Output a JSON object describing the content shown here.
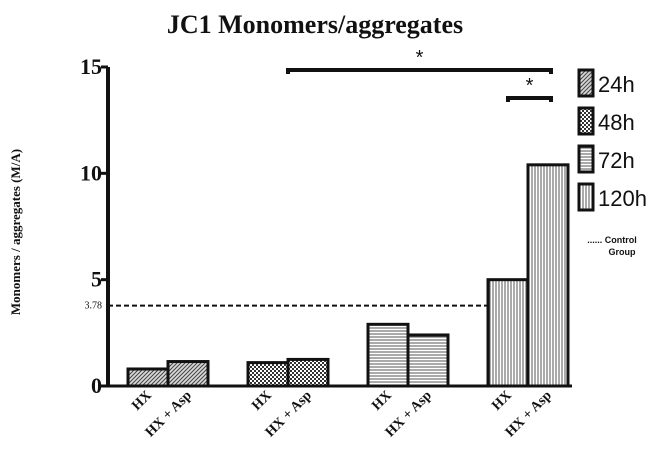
{
  "chart_data": {
    "type": "bar",
    "title": "JC1 Monomers/aggregates",
    "ylabel": "Monomers / aggregates (M/A)",
    "xlabel": "",
    "ylim": [
      0,
      15
    ],
    "yticks": [
      0,
      5,
      10,
      15
    ],
    "groups": [
      {
        "name": "24h",
        "pattern": "hatch",
        "bars": [
          {
            "label": "HX",
            "value": 0.8
          },
          {
            "label": "HX + Asp",
            "value": 1.15
          }
        ]
      },
      {
        "name": "48h",
        "pattern": "checker",
        "bars": [
          {
            "label": "HX",
            "value": 1.1
          },
          {
            "label": "HX + Asp",
            "value": 1.25
          }
        ]
      },
      {
        "name": "72h",
        "pattern": "horizontal",
        "bars": [
          {
            "label": "HX",
            "value": 2.9
          },
          {
            "label": "HX + Asp",
            "value": 2.4
          }
        ]
      },
      {
        "name": "120h",
        "pattern": "vertical",
        "bars": [
          {
            "label": "HX",
            "value": 5.0
          },
          {
            "label": "HX + Asp",
            "value": 10.4
          }
        ]
      }
    ],
    "reference_line": {
      "value": 3.78,
      "label": "3.78",
      "legend_text": "...... Control Group",
      "style": "dashed"
    },
    "significance": [
      {
        "from": "48h HX + Asp",
        "to": "120h HX + Asp",
        "label": "*"
      },
      {
        "from": "120h HX",
        "to": "120h HX + Asp",
        "label": "*"
      }
    ],
    "legend_position": "right",
    "colors": {
      "stroke": "#111111",
      "pattern": "#555555",
      "background": "#ffffff"
    }
  }
}
